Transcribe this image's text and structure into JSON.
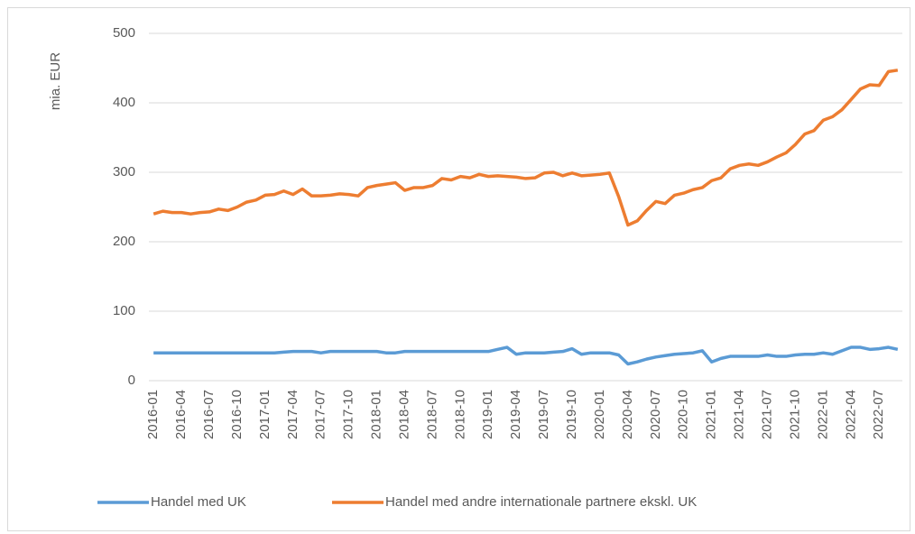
{
  "chart_data": {
    "type": "line",
    "y_label": "mia. EUR",
    "categories": [
      "2016-01",
      null,
      null,
      "2016-04",
      null,
      null,
      "2016-07",
      null,
      null,
      "2016-10",
      null,
      null,
      "2017-01",
      null,
      null,
      "2017-04",
      null,
      null,
      "2017-07",
      null,
      null,
      "2017-10",
      null,
      null,
      "2018-01",
      null,
      null,
      "2018-04",
      null,
      null,
      "2018-07",
      null,
      null,
      "2018-10",
      null,
      null,
      "2019-01",
      null,
      null,
      "2019-04",
      null,
      null,
      "2019-07",
      null,
      null,
      "2019-10",
      null,
      null,
      "2020-01",
      null,
      null,
      "2020-04",
      null,
      null,
      "2020-07",
      null,
      null,
      "2020-10",
      null,
      null,
      "2021-01",
      null,
      null,
      "2021-04",
      null,
      null,
      "2021-07",
      null,
      null,
      "2021-10",
      null,
      null,
      "2022-01",
      null,
      null,
      "2022-04",
      null,
      null,
      "2022-07",
      null,
      null
    ],
    "series": [
      {
        "name": "Handel med UK",
        "color": "#5b9bd5",
        "values": [
          40,
          40,
          40,
          40,
          40,
          40,
          40,
          40,
          40,
          40,
          40,
          40,
          40,
          40,
          41,
          42,
          42,
          42,
          40,
          42,
          42,
          42,
          42,
          42,
          42,
          40,
          40,
          42,
          42,
          42,
          42,
          42,
          42,
          42,
          42,
          42,
          42,
          45,
          48,
          38,
          40,
          40,
          40,
          41,
          42,
          46,
          38,
          40,
          40,
          40,
          37,
          24,
          27,
          31,
          34,
          36,
          38,
          39,
          40,
          43,
          27,
          32,
          35,
          35,
          35,
          35,
          37,
          35,
          35,
          37,
          38,
          38,
          40,
          38,
          43,
          48,
          48,
          45,
          46,
          48,
          45
        ]
      },
      {
        "name": "Handel med andre internationale partnere ekskl. UK",
        "color": "#ed7d31",
        "values": [
          240,
          244,
          242,
          242,
          240,
          242,
          243,
          247,
          245,
          250,
          257,
          260,
          267,
          268,
          273,
          268,
          276,
          266,
          266,
          267,
          269,
          268,
          266,
          278,
          281,
          283,
          285,
          274,
          278,
          278,
          281,
          291,
          289,
          294,
          292,
          297,
          294,
          295,
          294,
          293,
          291,
          292,
          299,
          300,
          295,
          299,
          295,
          296,
          297,
          299,
          265,
          224,
          230,
          245,
          258,
          255,
          267,
          270,
          275,
          278,
          288,
          292,
          305,
          310,
          312,
          310,
          315,
          322,
          328,
          340,
          355,
          360,
          375,
          380,
          390,
          405,
          420,
          426,
          425,
          445,
          447
        ]
      }
    ],
    "ylim": [
      0,
      500
    ],
    "yticks": [
      0,
      100,
      200,
      300,
      400,
      500
    ],
    "grid": true,
    "legend": "bottom"
  }
}
